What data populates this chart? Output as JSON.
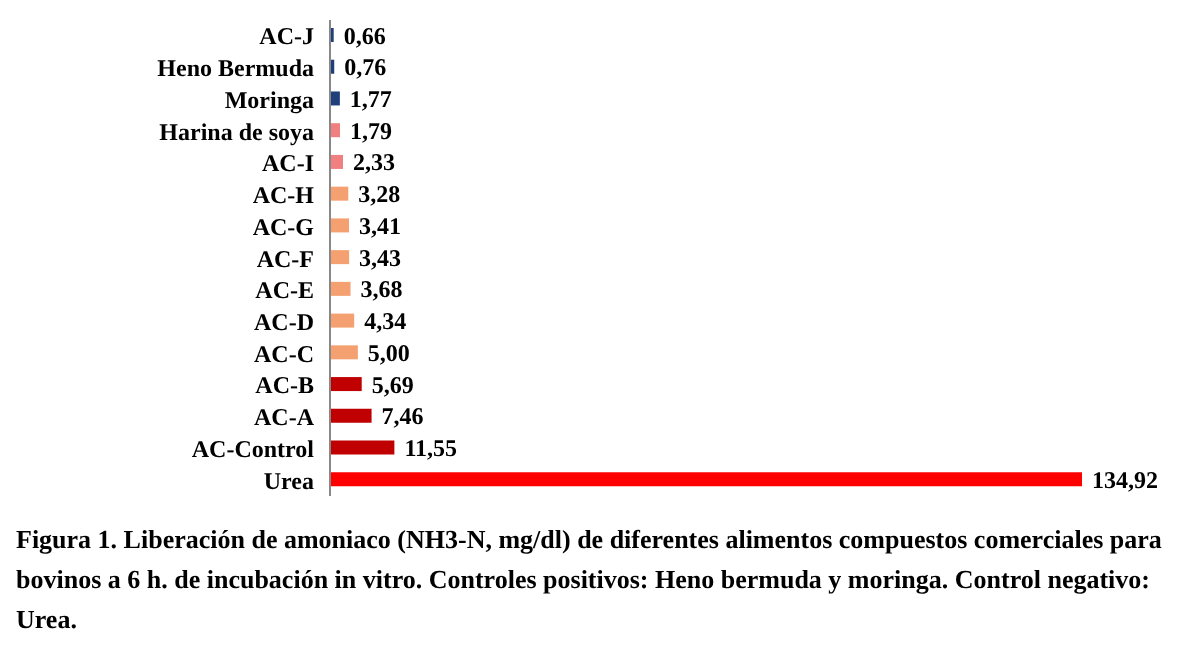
{
  "chart_data": {
    "type": "bar",
    "orientation": "horizontal",
    "categories": [
      "AC-J",
      "Heno Bermuda",
      "Moringa",
      "Harina de soya",
      "AC-I",
      "AC-H",
      "AC-G",
      "AC-F",
      "AC-E",
      "AC-D",
      "AC-C",
      "AC-B",
      "AC-A",
      "AC-Control",
      "Urea"
    ],
    "values": [
      0.66,
      0.76,
      1.77,
      1.79,
      2.33,
      3.28,
      3.41,
      3.43,
      3.68,
      4.34,
      5.0,
      5.69,
      7.46,
      11.55,
      134.92
    ],
    "value_labels": [
      "0,66",
      "0,76",
      "1,77",
      "1,79",
      "2,33",
      "3,28",
      "3,41",
      "3,43",
      "3,68",
      "4,34",
      "5,00",
      "5,69",
      "7,46",
      "11,55",
      "134,92"
    ],
    "colors": [
      "#1f3f7a",
      "#1f3f7a",
      "#1f3f7a",
      "#f08080",
      "#f08080",
      "#f4a070",
      "#f4a070",
      "#f4a070",
      "#f4a070",
      "#f4a070",
      "#f4a070",
      "#c00000",
      "#c00000",
      "#c00000",
      "#ff0000"
    ],
    "grid": false,
    "legend": false,
    "annotations": [
      "Figura 1. Liberación de amoniaco (NH3-N, mg/dl) de diferentes alimentos compuestos comerciales para bovinos a 6 h. de incubación in vitro. Controles positivos: Heno bermuda y moringa. Control negativo: Urea."
    ]
  }
}
